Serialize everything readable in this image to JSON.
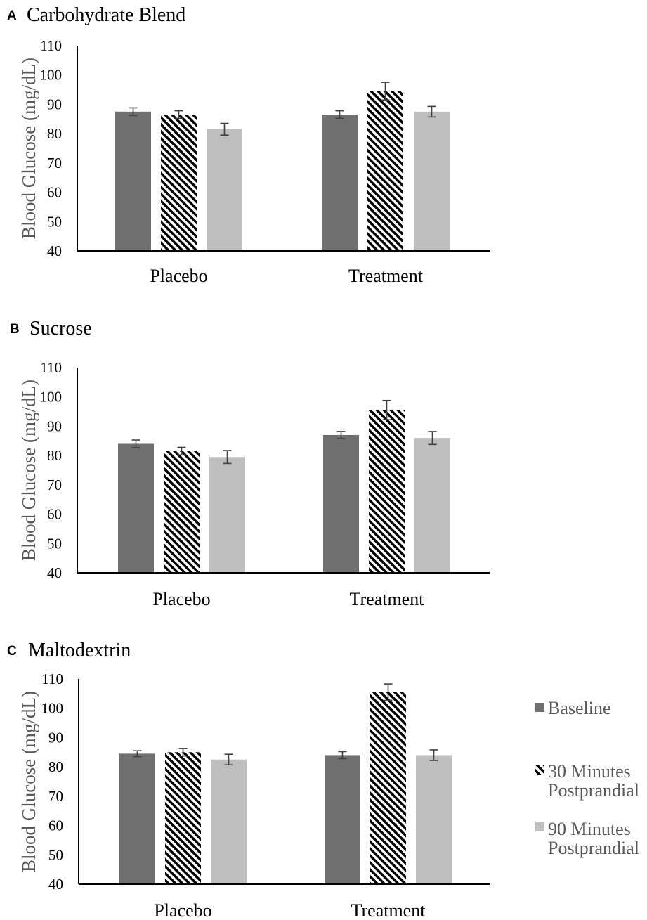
{
  "colors": {
    "baseline": "#707070",
    "min30_stripe": "#000000",
    "min90": "#bfbfbf",
    "axis": "#000000",
    "errorbar": "#404040"
  },
  "legend": {
    "items": [
      {
        "key": "baseline",
        "lines": [
          "Baseline"
        ]
      },
      {
        "key": "min30",
        "lines": [
          "30 Minutes",
          "Postprandial"
        ]
      },
      {
        "key": "min90",
        "lines": [
          "90 Minutes",
          "Postprandial"
        ]
      }
    ]
  },
  "chart_data": [
    {
      "type": "bar",
      "panel_letter": "A",
      "title": "Carbohydrate Blend",
      "ylabel": "Blood Glucose (mg/dL)",
      "ylim": [
        40,
        110
      ],
      "yticks": [
        "40",
        "50",
        "60",
        "70",
        "80",
        "90",
        "100",
        "110"
      ],
      "categories": [
        "Placebo",
        "Treatment"
      ],
      "series": [
        {
          "name": "Baseline",
          "key": "baseline",
          "values": [
            87.5,
            86.5
          ],
          "errors": [
            1.3,
            1.3
          ]
        },
        {
          "name": "30 Minutes Postprandial",
          "key": "min30",
          "values": [
            86.5,
            94.5
          ],
          "errors": [
            1.3,
            3.0
          ]
        },
        {
          "name": "90 Minutes Postprandial",
          "key": "min90",
          "values": [
            81.5,
            87.5
          ],
          "errors": [
            2.0,
            1.8
          ]
        }
      ]
    },
    {
      "type": "bar",
      "panel_letter": "B",
      "title": "Sucrose",
      "ylabel": "Blood Glucose (mg/dL)",
      "ylim": [
        40,
        110
      ],
      "yticks": [
        "40",
        "50",
        "60",
        "70",
        "80",
        "90",
        "100",
        "110"
      ],
      "categories": [
        "Placebo",
        "Treatment"
      ],
      "series": [
        {
          "name": "Baseline",
          "key": "baseline",
          "values": [
            84.0,
            87.0
          ],
          "errors": [
            1.3,
            1.2
          ]
        },
        {
          "name": "30 Minutes Postprandial",
          "key": "min30",
          "values": [
            81.5,
            95.5
          ],
          "errors": [
            1.3,
            3.3
          ]
        },
        {
          "name": "90 Minutes Postprandial",
          "key": "min90",
          "values": [
            79.5,
            86.0
          ],
          "errors": [
            2.2,
            2.2
          ]
        }
      ]
    },
    {
      "type": "bar",
      "panel_letter": "C",
      "title": "Maltodextrin",
      "ylabel": "Blood Glucose (mg/dL)",
      "ylim": [
        40,
        110
      ],
      "yticks": [
        "40",
        "50",
        "60",
        "70",
        "80",
        "90",
        "100",
        "110"
      ],
      "categories": [
        "Placebo",
        "Treatment"
      ],
      "series": [
        {
          "name": "Baseline",
          "key": "baseline",
          "values": [
            84.5,
            84.0
          ],
          "errors": [
            1.0,
            1.2
          ]
        },
        {
          "name": "30 Minutes Postprandial",
          "key": "min30",
          "values": [
            85.0,
            105.5
          ],
          "errors": [
            1.3,
            2.8
          ]
        },
        {
          "name": "90 Minutes Postprandial",
          "key": "min90",
          "values": [
            82.5,
            84.0
          ],
          "errors": [
            1.8,
            1.8
          ]
        }
      ]
    }
  ]
}
